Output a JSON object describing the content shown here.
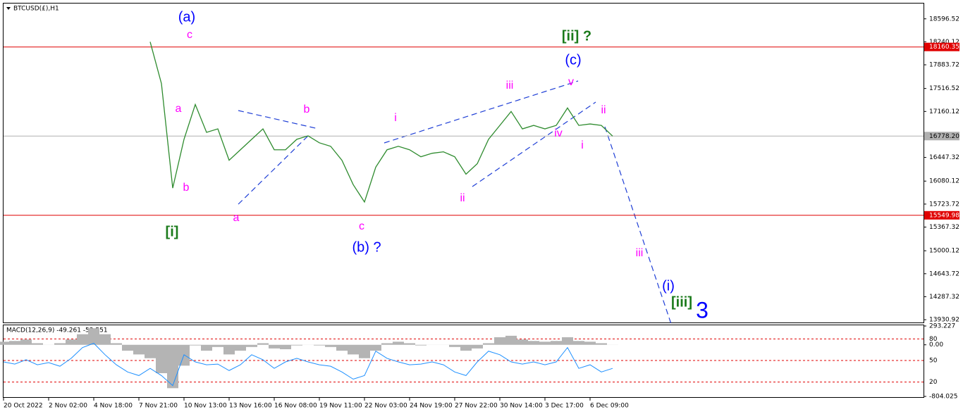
{
  "chart_data": [
    {
      "type": "line",
      "title": "BTCUSD(£),H1",
      "categories": [
        "20 Oct 2022",
        null,
        null,
        null,
        "2 Nov 02:00",
        null,
        null,
        null,
        "4 Nov 18:00",
        null,
        null,
        null,
        "7 Nov 21:00",
        null,
        null,
        null,
        "10 Nov 13:00",
        null,
        null,
        null,
        "13 Nov 16:00",
        null,
        null,
        null,
        "16 Nov 08:00",
        null,
        null,
        null,
        "19 Nov 11:00",
        null,
        null,
        null,
        "22 Nov 03:00",
        null,
        null,
        null,
        "24 Nov 19:00",
        null,
        null,
        null,
        "27 Nov 22:00",
        null,
        null,
        null,
        "30 Nov 14:00",
        null,
        null,
        null,
        "3 Dec 17:00",
        null,
        null,
        null,
        "6 Dec 09:00",
        null,
        null
      ],
      "series": [
        {
          "color": "#2e8b2e",
          "values": [
            null,
            null,
            null,
            null,
            null,
            null,
            null,
            null,
            null,
            null,
            null,
            null,
            null,
            18240,
            17592,
            15972,
            16728,
            17268,
            16836,
            16890,
            16404,
            16566,
            16728,
            16890,
            16566,
            16566,
            16728,
            16782,
            16674,
            16620,
            16404,
            16026,
            15756,
            16296,
            16566,
            16620,
            16566,
            16458,
            16512,
            16534,
            16458,
            16188,
            16350,
            16728,
            16944,
            17160,
            16890,
            16944,
            16890,
            16944,
            17214,
            16944,
            16966,
            16944,
            16778
          ]
        }
      ],
      "ylim": [
        13888,
        18834
      ],
      "yticks": [
        18596.52,
        18240.12,
        17883.72,
        17516.52,
        17160.12,
        16447.32,
        16080.12,
        15723.72,
        15367.32,
        15000.12,
        14643.72,
        14287.32,
        13930.92
      ],
      "levels": [
        {
          "value": 18160.35,
          "color": "#e00000"
        },
        {
          "value": 15549.98,
          "color": "#e00000"
        }
      ],
      "current": {
        "value": 16778.2,
        "label": "16778.20",
        "color": "#b0b0b0"
      },
      "annotations": [
        {
          "text": "(a)",
          "color": "#0000ff"
        },
        {
          "text": "c",
          "color": "#ff00ff"
        },
        {
          "text": "a",
          "color": "#ff00ff"
        },
        {
          "text": "b",
          "color": "#ff00ff"
        },
        {
          "text": "[i]",
          "color": "#1a7a1a"
        },
        {
          "text": "a",
          "color": "#ff00ff"
        },
        {
          "text": "b",
          "color": "#ff00ff"
        },
        {
          "text": "c",
          "color": "#ff00ff"
        },
        {
          "text": "(b) ?",
          "color": "#0000ff"
        },
        {
          "text": "i",
          "color": "#ff00ff"
        },
        {
          "text": "ii",
          "color": "#ff00ff"
        },
        {
          "text": "iii",
          "color": "#ff00ff"
        },
        {
          "text": "iv",
          "color": "#ff00ff"
        },
        {
          "text": "v",
          "color": "#ff00ff"
        },
        {
          "text": "i",
          "color": "#ff00ff"
        },
        {
          "text": "ii",
          "color": "#ff00ff"
        },
        {
          "text": "(c)",
          "color": "#0000ff"
        },
        {
          "text": "[ii] ?",
          "color": "#1a7a1a"
        },
        {
          "text": "iii",
          "color": "#ff00ff"
        },
        {
          "text": "(i)",
          "color": "#0000ff"
        },
        {
          "text": "[iii]",
          "color": "#1a7a1a"
        },
        {
          "text": "3",
          "color": "#0000ff"
        }
      ]
    },
    {
      "type": "bar",
      "title": "MACD(12,26,9) -49.261 -53.551",
      "series": [
        {
          "color": "#b4b4b4",
          "values": [
            48,
            60,
            83,
            25,
            1,
            25,
            83,
            165,
            258,
            165,
            25,
            -92,
            -150,
            -209,
            -442,
            -676,
            -325,
            -10,
            -92,
            -34,
            -150,
            -92,
            -34,
            25,
            -57,
            -69,
            -10,
            1,
            -10,
            -34,
            -92,
            -150,
            -209,
            -92,
            25,
            48,
            25,
            -10,
            1,
            1,
            -34,
            -92,
            -57,
            25,
            118,
            141,
            83,
            60,
            48,
            60,
            118,
            60,
            48,
            25,
            1
          ]
        },
        {
          "color": "#1e90ff",
          "axis": "y2",
          "values": [
            48,
            45,
            51,
            44,
            47,
            42,
            53,
            68,
            74,
            58,
            44,
            34,
            29,
            39,
            29,
            15,
            58,
            48,
            44,
            45,
            36,
            44,
            58,
            51,
            39,
            48,
            53,
            48,
            44,
            42,
            34,
            24,
            29,
            63,
            53,
            48,
            44,
            45,
            48,
            44,
            34,
            29,
            48,
            63,
            58,
            48,
            45,
            48,
            44,
            48,
            68,
            39,
            44,
            34,
            39
          ]
        }
      ],
      "ylim": [
        -804.025,
        293.227
      ],
      "yticks": [
        293.227,
        {
          "value": 0,
          "label": "0.00"
        },
        -804.025
      ],
      "y2lim": [
        -2,
        100
      ],
      "y2ticks": [
        80,
        50,
        20
      ],
      "y2grid_color": "#e00000"
    }
  ]
}
